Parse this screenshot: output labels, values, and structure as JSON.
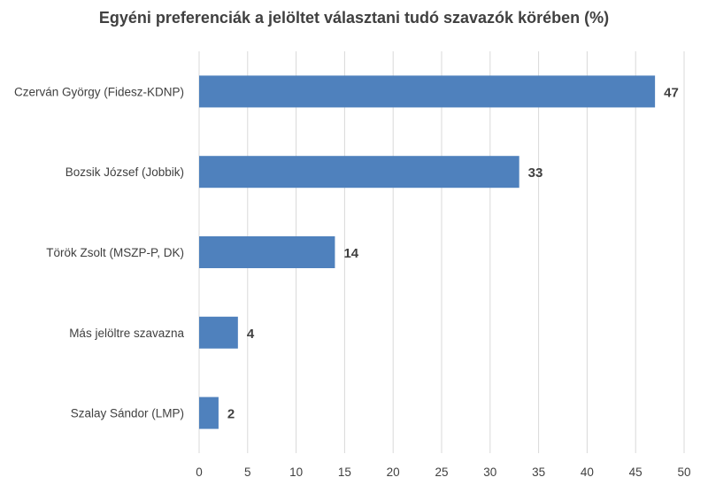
{
  "chart_data": {
    "type": "bar",
    "orientation": "horizontal",
    "title": "Egyéni preferenciák a jelöltet választani tudó szavazók körében (%)",
    "categories": [
      "Czerván György (Fidesz-KDNP)",
      "Bozsik József (Jobbik)",
      "Török Zsolt (MSZP-P, DK)",
      "Más jelöltre szavazna",
      "Szalay Sándor (LMP)"
    ],
    "values": [
      47,
      33,
      14,
      4,
      2
    ],
    "data_labels": [
      "47",
      "33",
      "14",
      "4",
      "2"
    ],
    "xlim": [
      0,
      50
    ],
    "x_ticks": [
      "0",
      "5",
      "10",
      "15",
      "20",
      "25",
      "30",
      "35",
      "40",
      "45",
      "50"
    ],
    "bar_color": "#4f81bd",
    "grid": true,
    "grid_color": "#d9d9d9"
  }
}
